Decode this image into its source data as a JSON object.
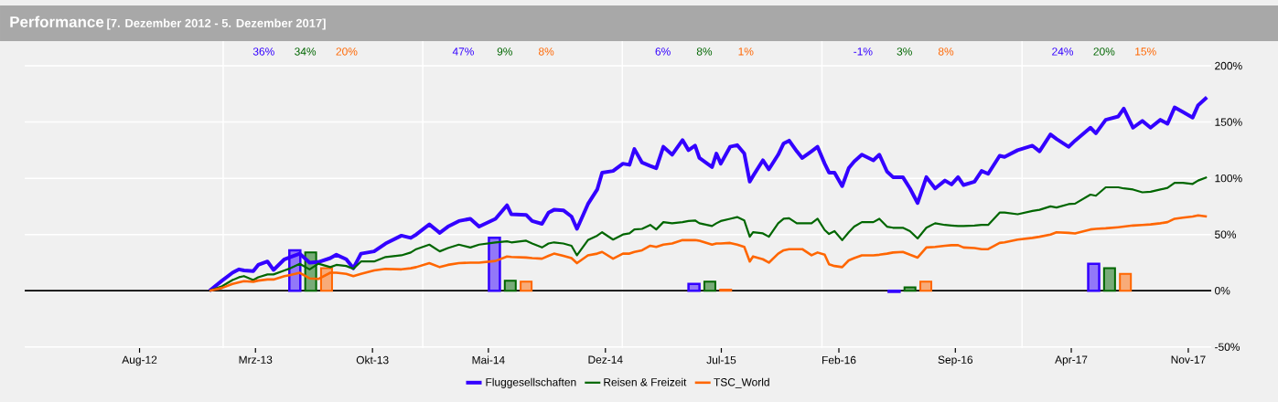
{
  "chart_data": {
    "type": "line",
    "title": "Performance",
    "subtitle": "[7. Dezember 2012 - 5. Dezember 2017]",
    "x": [
      "2012-12-07",
      "2012-12-30",
      "2013-01-18",
      "2013-01-30",
      "2013-02-08",
      "2013-02-25",
      "2013-03-06",
      "2013-03-23",
      "2013-04-03",
      "2013-04-23",
      "2013-05-04",
      "2013-05-21",
      "2013-06-08",
      "2013-06-24",
      "2013-07-16",
      "2013-07-27",
      "2013-08-14",
      "2013-08-27",
      "2013-09-10",
      "2013-10-04",
      "2013-10-25",
      "2013-11-23",
      "2013-12-10",
      "2013-12-20",
      "2014-01-13",
      "2014-02-01",
      "2014-02-16",
      "2014-03-08",
      "2014-03-29",
      "2014-04-14",
      "2014-05-14",
      "2014-06-04",
      "2014-06-12",
      "2014-07-09",
      "2014-07-20",
      "2014-08-07",
      "2014-08-19",
      "2014-08-29",
      "2014-09-15",
      "2014-09-30",
      "2014-10-10",
      "2014-10-30",
      "2014-11-16",
      "2014-11-25",
      "2014-12-15",
      "2015-01-02",
      "2015-01-14",
      "2015-01-23",
      "2015-02-06",
      "2015-02-21",
      "2015-03-04",
      "2015-03-17",
      "2015-04-02",
      "2015-04-21",
      "2015-05-02",
      "2015-05-14",
      "2015-05-22",
      "2015-06-14",
      "2015-06-22",
      "2015-06-30",
      "2015-07-17",
      "2015-07-30",
      "2015-08-12",
      "2015-08-22",
      "2015-08-28",
      "2015-09-15",
      "2015-09-26",
      "2015-10-13",
      "2015-10-23",
      "2015-11-02",
      "2015-11-16",
      "2015-11-26",
      "2015-12-13",
      "2015-12-24",
      "2016-01-06",
      "2016-01-14",
      "2016-01-24",
      "2016-02-07",
      "2016-02-19",
      "2016-02-29",
      "2016-03-14",
      "2016-04-04",
      "2016-04-15",
      "2016-04-29",
      "2016-05-10",
      "2016-05-28",
      "2016-06-10",
      "2016-06-24",
      "2016-07-10",
      "2016-07-26",
      "2016-08-13",
      "2016-08-25",
      "2016-09-06",
      "2016-09-16",
      "2016-10-06",
      "2016-10-19",
      "2016-10-31",
      "2016-11-21",
      "2016-11-30",
      "2016-12-24",
      "2017-01-20",
      "2017-02-02",
      "2017-02-22",
      "2017-03-05",
      "2017-03-27",
      "2017-04-08",
      "2017-05-06",
      "2017-05-16",
      "2017-06-03",
      "2017-06-26",
      "2017-07-06",
      "2017-07-23",
      "2017-08-09",
      "2017-08-24",
      "2017-09-11",
      "2017-09-24",
      "2017-10-07",
      "2017-10-22",
      "2017-11-09",
      "2017-11-19",
      "2017-12-05"
    ],
    "series": [
      {
        "name": "Fluggesellschaften",
        "color": "#3300ff",
        "values": [
          0,
          9,
          16,
          19,
          18,
          17.5,
          23,
          26,
          18.5,
          28,
          30,
          33,
          25,
          25.5,
          29,
          32,
          28,
          20,
          33,
          35,
          42,
          49,
          47,
          50,
          59,
          51.5,
          57,
          62,
          64,
          57,
          64,
          76,
          68,
          67.5,
          62,
          59.5,
          69.5,
          72,
          71.5,
          66,
          55,
          77,
          90,
          105,
          106.5,
          113,
          112,
          126,
          114,
          111,
          109,
          128,
          121,
          134,
          125,
          129,
          118,
          110,
          122,
          113,
          128,
          129.5,
          122,
          97,
          102,
          116,
          108,
          121,
          131,
          133.5,
          124,
          118,
          124,
          128,
          113,
          105,
          105,
          93,
          109,
          115,
          121,
          116,
          121,
          106,
          101,
          101,
          91,
          78,
          101,
          91,
          98,
          94.5,
          101,
          94,
          97,
          106.5,
          104,
          120,
          119,
          125,
          129,
          124,
          139,
          135,
          128,
          133.5,
          145,
          140,
          152,
          155,
          162,
          145,
          151,
          145,
          152,
          148.5,
          163,
          159,
          154,
          165,
          172
        ]
      },
      {
        "name": "Reisen & Freizeit",
        "color": "#006600",
        "values": [
          0,
          4,
          9.5,
          12,
          13,
          9.5,
          12,
          14.5,
          14.5,
          18,
          20,
          24,
          19,
          24,
          21,
          23,
          22,
          19.5,
          26,
          26,
          30,
          31.5,
          34,
          37,
          41,
          35,
          38,
          41,
          38.5,
          41,
          43,
          44,
          43,
          44.5,
          42,
          38.5,
          42,
          43,
          42,
          40,
          31.5,
          45,
          49,
          52,
          45.5,
          50,
          51,
          54.5,
          55,
          58.5,
          54.5,
          61,
          60,
          61,
          62,
          62.5,
          60,
          57.5,
          60,
          62,
          64,
          65.5,
          62.5,
          48,
          52,
          51,
          48,
          60,
          64,
          64.5,
          60,
          60,
          60,
          64,
          54,
          50.5,
          53,
          45,
          52,
          57,
          61,
          61,
          64,
          57,
          56,
          56,
          53,
          46.5,
          56,
          60,
          58.5,
          58,
          57.5,
          57.5,
          58,
          58.5,
          58.5,
          69.5,
          69.5,
          68,
          71,
          72,
          75,
          74,
          77,
          77.5,
          85.5,
          84.5,
          92,
          92,
          91,
          90,
          87.5,
          88,
          90,
          91.5,
          96,
          96,
          95,
          98,
          101
        ]
      },
      {
        "name": "TSC_World",
        "color": "#ff6600",
        "values": [
          0,
          2.5,
          6,
          7.5,
          8.5,
          8,
          9,
          10,
          10,
          13,
          14,
          16,
          11,
          10.5,
          16,
          16,
          15,
          13,
          15,
          18,
          19.5,
          19,
          20,
          21,
          24.5,
          21,
          23,
          24.5,
          25,
          25,
          26.5,
          30.5,
          30,
          29.5,
          29,
          28.5,
          31,
          33,
          31,
          29,
          24.5,
          31.5,
          33,
          34.5,
          28.5,
          33,
          33,
          34.5,
          36,
          40,
          39,
          41,
          42,
          45,
          45,
          45,
          44.5,
          41,
          42,
          42,
          42.5,
          41,
          39,
          26,
          30.5,
          28,
          25,
          33,
          36,
          37,
          37,
          37,
          31.5,
          34,
          32,
          23.5,
          22,
          21,
          27,
          29,
          31.5,
          31.5,
          32,
          33,
          34,
          34.5,
          32,
          29.5,
          38.5,
          39,
          40,
          40.5,
          40.5,
          38.5,
          38,
          37,
          37,
          42.5,
          43,
          45.5,
          47,
          48,
          50,
          52,
          51.5,
          51,
          54.5,
          55,
          55.5,
          56.5,
          57,
          58,
          58.5,
          59,
          60,
          61,
          64,
          65,
          66,
          67,
          66
        ]
      },
      {
        "type": "bar",
        "color": "#3300ff",
        "x": [
          "2013-05-12",
          "2014-05-12",
          "2015-05-12",
          "2016-05-12",
          "2017-05-12"
        ],
        "values": [
          36,
          47,
          6,
          -1,
          24
        ]
      },
      {
        "type": "bar",
        "color": "#006600",
        "x": [
          "2013-06-10",
          "2014-06-10",
          "2015-06-10",
          "2016-06-10",
          "2017-06-10"
        ],
        "values": [
          34,
          9,
          8,
          3,
          20
        ]
      },
      {
        "type": "bar",
        "color": "#ff6600",
        "x": [
          "2013-07-09",
          "2014-07-09",
          "2015-07-09",
          "2016-07-09",
          "2017-07-09"
        ],
        "values": [
          20,
          8,
          1,
          8,
          15
        ]
      }
    ],
    "annotations": [
      "36%",
      "34%",
      "20%",
      "47%",
      "9%",
      "8%",
      "6%",
      "8%",
      "1%",
      "-1%",
      "3%",
      "8%",
      "24%",
      "20%",
      "15%"
    ],
    "xlim": [
      "2012-01-04",
      "2017-12-13"
    ],
    "xticks": [
      {
        "value": "2012-08-01",
        "label": "Aug-12"
      },
      {
        "value": "2013-03-01",
        "label": "Mrz-13"
      },
      {
        "value": "2013-10-01",
        "label": "Okt-13"
      },
      {
        "value": "2014-05-01",
        "label": "Mai-14"
      },
      {
        "value": "2014-12-01",
        "label": "Dez-14"
      },
      {
        "value": "2015-07-01",
        "label": "Jul-15"
      },
      {
        "value": "2016-02-01",
        "label": "Feb-16"
      },
      {
        "value": "2016-09-01",
        "label": "Sep-16"
      },
      {
        "value": "2017-04-01",
        "label": "Apr-17"
      },
      {
        "value": "2017-11-01",
        "label": "Nov-17"
      }
    ],
    "ylim": [
      -51,
      222
    ],
    "yticks": [
      {
        "value": -50,
        "label": "-50%"
      },
      {
        "value": 0,
        "label": "0%"
      },
      {
        "value": 50,
        "label": "50%"
      },
      {
        "value": 100,
        "label": "100%"
      },
      {
        "value": 150,
        "label": "150%"
      },
      {
        "value": 200,
        "label": "200%"
      }
    ],
    "ref_lines": [
      {
        "axis": "x",
        "value": "2013-01-01",
        "color": "#ffffff"
      },
      {
        "axis": "x",
        "value": "2014-01-01",
        "color": "#ffffff"
      },
      {
        "axis": "x",
        "value": "2015-01-01",
        "color": "#ffffff"
      },
      {
        "axis": "x",
        "value": "2016-01-01",
        "color": "#ffffff"
      },
      {
        "axis": "x",
        "value": "2017-01-01",
        "color": "#ffffff"
      },
      {
        "axis": "y",
        "value": 0,
        "color": "#000000"
      }
    ],
    "grid": "y",
    "legend": "bottom"
  }
}
